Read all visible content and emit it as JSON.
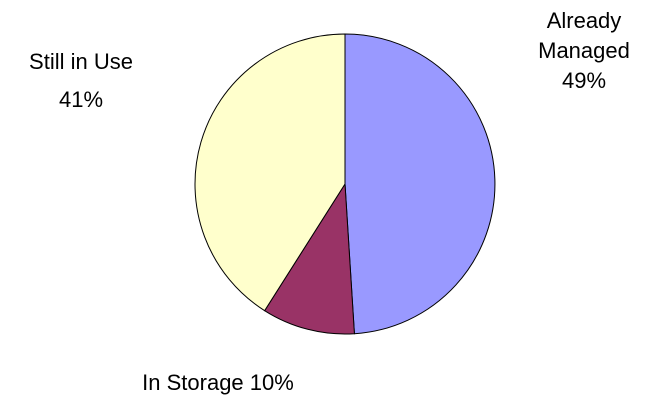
{
  "chart_data": {
    "type": "pie",
    "title": "",
    "slices": [
      {
        "name": "Already Managed",
        "label_lines": [
          "Already",
          "Managed",
          "49%"
        ],
        "value": 49,
        "color": "#9999ff"
      },
      {
        "name": "In Storage",
        "label_lines": [
          "In Storage 10%"
        ],
        "value": 10,
        "color": "#993366"
      },
      {
        "name": "Still in Use",
        "label_lines": [
          "Still in Use",
          "41%"
        ],
        "value": 41,
        "color": "#ffffcc"
      }
    ],
    "start_angle": "12 o'clock",
    "direction": "clockwise",
    "legend": "none"
  }
}
